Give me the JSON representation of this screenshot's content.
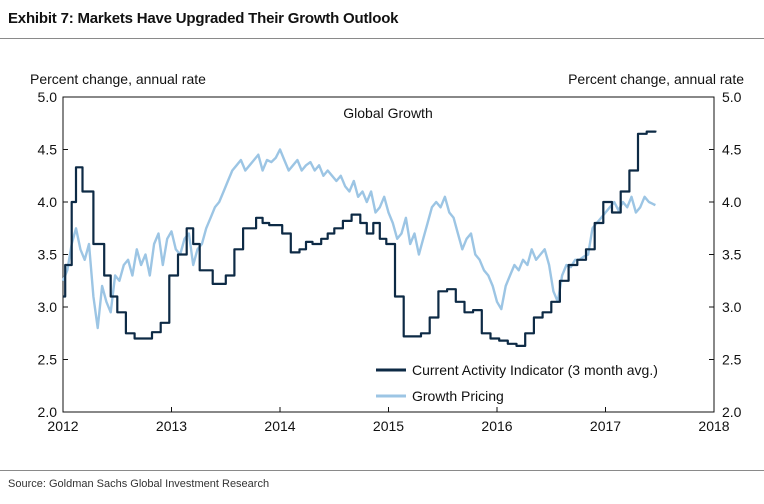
{
  "header": {
    "title": "Exhibit 7: Markets Have Upgraded Their Growth Outlook"
  },
  "footer": {
    "source": "Source: Goldman Sachs Global Investment Research"
  },
  "chart_data": {
    "type": "line",
    "title": "Global Growth",
    "ylabel_left": "Percent change, annual rate",
    "ylabel_right": "Percent change, annual rate",
    "xlim": [
      2012,
      2018
    ],
    "ylim": [
      2.0,
      5.0
    ],
    "x_ticks": [
      "2012",
      "2013",
      "2014",
      "2015",
      "2016",
      "2017",
      "2018"
    ],
    "y_ticks": [
      "2.0",
      "2.5",
      "3.0",
      "3.5",
      "4.0",
      "4.5",
      "5.0"
    ],
    "grid": false,
    "legend_position": "bottom-right",
    "series": [
      {
        "name": "Current Activity Indicator (3 month avg.)",
        "color": "#0d2a45",
        "x": [
          2012.0,
          2012.02,
          2012.08,
          2012.12,
          2012.18,
          2012.28,
          2012.38,
          2012.44,
          2012.5,
          2012.58,
          2012.66,
          2012.74,
          2012.82,
          2012.9,
          2012.98,
          2013.06,
          2013.14,
          2013.2,
          2013.26,
          2013.32,
          2013.38,
          2013.44,
          2013.5,
          2013.58,
          2013.66,
          2013.72,
          2013.78,
          2013.84,
          2013.9,
          2013.96,
          2014.02,
          2014.1,
          2014.18,
          2014.24,
          2014.3,
          2014.38,
          2014.44,
          2014.5,
          2014.58,
          2014.66,
          2014.74,
          2014.8,
          2014.86,
          2014.92,
          2014.98,
          2015.06,
          2015.14,
          2015.22,
          2015.3,
          2015.38,
          2015.46,
          2015.54,
          2015.62,
          2015.7,
          2015.78,
          2015.86,
          2015.94,
          2016.02,
          2016.1,
          2016.18,
          2016.26,
          2016.34,
          2016.42,
          2016.5,
          2016.58,
          2016.66,
          2016.74,
          2016.82,
          2016.9,
          2016.98,
          2017.06,
          2017.14,
          2017.22,
          2017.3,
          2017.38,
          2017.46
        ],
        "values": [
          3.1,
          3.4,
          4.0,
          4.33,
          4.1,
          3.6,
          3.3,
          3.1,
          2.95,
          2.75,
          2.7,
          2.7,
          2.76,
          2.85,
          3.3,
          3.5,
          3.75,
          3.6,
          3.35,
          3.35,
          3.22,
          3.22,
          3.3,
          3.55,
          3.75,
          3.75,
          3.85,
          3.8,
          3.78,
          3.78,
          3.7,
          3.52,
          3.55,
          3.62,
          3.6,
          3.65,
          3.7,
          3.75,
          3.82,
          3.88,
          3.8,
          3.7,
          3.8,
          3.65,
          3.6,
          3.1,
          2.72,
          2.72,
          2.75,
          2.9,
          3.15,
          3.17,
          3.05,
          2.95,
          2.97,
          2.75,
          2.7,
          2.68,
          2.65,
          2.63,
          2.75,
          2.9,
          2.95,
          3.05,
          3.25,
          3.4,
          3.45,
          3.55,
          3.8,
          4.0,
          3.9,
          4.1,
          4.3,
          4.65,
          4.67,
          4.68
        ]
      },
      {
        "name": "Growth Pricing",
        "color": "#9cc5e4",
        "x": [
          2012.0,
          2012.04,
          2012.08,
          2012.12,
          2012.16,
          2012.2,
          2012.24,
          2012.28,
          2012.32,
          2012.36,
          2012.4,
          2012.44,
          2012.48,
          2012.52,
          2012.56,
          2012.6,
          2012.64,
          2012.68,
          2012.72,
          2012.76,
          2012.8,
          2012.84,
          2012.88,
          2012.92,
          2012.96,
          2013.0,
          2013.04,
          2013.08,
          2013.12,
          2013.16,
          2013.2,
          2013.24,
          2013.28,
          2013.32,
          2013.36,
          2013.4,
          2013.44,
          2013.48,
          2013.52,
          2013.56,
          2013.6,
          2013.64,
          2013.68,
          2013.72,
          2013.76,
          2013.8,
          2013.84,
          2013.88,
          2013.92,
          2013.96,
          2014.0,
          2014.04,
          2014.08,
          2014.12,
          2014.16,
          2014.2,
          2014.24,
          2014.28,
          2014.32,
          2014.36,
          2014.4,
          2014.44,
          2014.48,
          2014.52,
          2014.56,
          2014.6,
          2014.64,
          2014.68,
          2014.72,
          2014.76,
          2014.8,
          2014.84,
          2014.88,
          2014.92,
          2014.96,
          2015.0,
          2015.04,
          2015.08,
          2015.12,
          2015.16,
          2015.2,
          2015.24,
          2015.28,
          2015.32,
          2015.36,
          2015.4,
          2015.44,
          2015.48,
          2015.52,
          2015.56,
          2015.6,
          2015.64,
          2015.68,
          2015.72,
          2015.76,
          2015.8,
          2015.84,
          2015.88,
          2015.92,
          2015.96,
          2016.0,
          2016.04,
          2016.08,
          2016.12,
          2016.16,
          2016.2,
          2016.24,
          2016.28,
          2016.32,
          2016.36,
          2016.4,
          2016.44,
          2016.48,
          2016.52,
          2016.56,
          2016.6,
          2016.64,
          2016.68,
          2016.72,
          2016.76,
          2016.8,
          2016.84,
          2016.88,
          2016.92,
          2016.96,
          2017.0,
          2017.04,
          2017.08,
          2017.12,
          2017.16,
          2017.2,
          2017.24,
          2017.28,
          2017.32,
          2017.36,
          2017.4,
          2017.44,
          2017.46
        ],
        "values": [
          3.25,
          3.35,
          3.6,
          3.75,
          3.55,
          3.45,
          3.6,
          3.1,
          2.8,
          3.2,
          3.05,
          2.95,
          3.3,
          3.25,
          3.4,
          3.45,
          3.3,
          3.55,
          3.4,
          3.5,
          3.3,
          3.6,
          3.7,
          3.4,
          3.65,
          3.72,
          3.55,
          3.5,
          3.65,
          3.7,
          3.4,
          3.55,
          3.6,
          3.75,
          3.85,
          3.95,
          4.0,
          4.1,
          4.2,
          4.3,
          4.35,
          4.4,
          4.3,
          4.35,
          4.4,
          4.45,
          4.3,
          4.4,
          4.38,
          4.42,
          4.5,
          4.4,
          4.3,
          4.35,
          4.4,
          4.3,
          4.35,
          4.38,
          4.3,
          4.35,
          4.25,
          4.3,
          4.25,
          4.2,
          4.25,
          4.15,
          4.1,
          4.2,
          4.05,
          4.1,
          4.0,
          4.1,
          3.9,
          3.95,
          4.05,
          3.9,
          3.8,
          3.65,
          3.7,
          3.85,
          3.6,
          3.7,
          3.5,
          3.65,
          3.8,
          3.95,
          4.0,
          3.95,
          4.05,
          3.9,
          3.85,
          3.7,
          3.55,
          3.65,
          3.7,
          3.5,
          3.45,
          3.35,
          3.3,
          3.2,
          3.05,
          2.98,
          3.2,
          3.3,
          3.4,
          3.35,
          3.45,
          3.4,
          3.55,
          3.45,
          3.5,
          3.55,
          3.4,
          3.15,
          3.05,
          3.3,
          3.4,
          3.38,
          3.45,
          3.45,
          3.48,
          3.5,
          3.75,
          3.8,
          3.85,
          3.9,
          3.95,
          4.0,
          3.92,
          4.0,
          3.95,
          4.05,
          3.9,
          3.95,
          4.05,
          4.0,
          3.98,
          3.97
        ]
      }
    ]
  }
}
